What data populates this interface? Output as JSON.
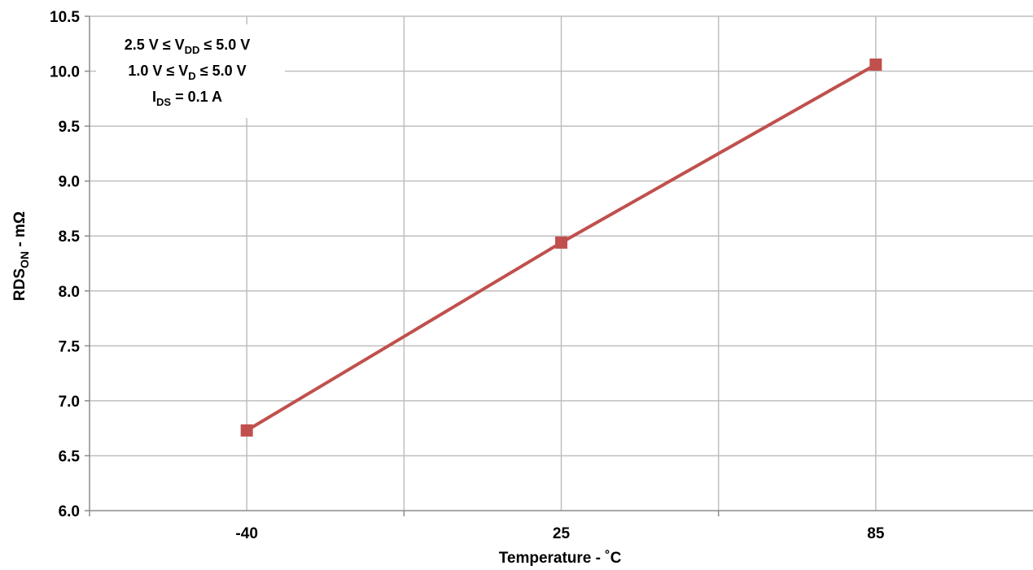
{
  "chart_data": {
    "type": "line",
    "title": "",
    "xlabel": "Temperature - ˚C",
    "ylabel_main": "RDS",
    "ylabel_sub": "ON",
    "ylabel_rest": " - mΩ",
    "categories": [
      "-40",
      "25",
      "85"
    ],
    "series": [
      {
        "values": [
          6.73,
          8.44,
          10.06
        ],
        "color": "#C0504D",
        "marker": "square"
      }
    ],
    "ylim": [
      6.0,
      10.5
    ],
    "yticks": [
      6.0,
      6.5,
      7.0,
      7.5,
      8.0,
      8.5,
      9.0,
      9.5,
      10.0,
      10.5
    ],
    "ytick_labels": [
      "6.0",
      "6.5",
      "7.0",
      "7.5",
      "8.0",
      "8.5",
      "9.0",
      "9.5",
      "10.0",
      "10.5"
    ],
    "grid": true,
    "legend": "none",
    "annotation": {
      "line1": {
        "pre": "2.5 V ≤ V",
        "sub": "DD",
        "post": " ≤ 5.0 V"
      },
      "line2": {
        "pre": "1.0 V ≤ V",
        "sub": "D",
        "post": " ≤ 5.0 V"
      },
      "line3": {
        "pre": "I",
        "sub": "DS",
        "post": " = 0.1 A"
      }
    }
  }
}
